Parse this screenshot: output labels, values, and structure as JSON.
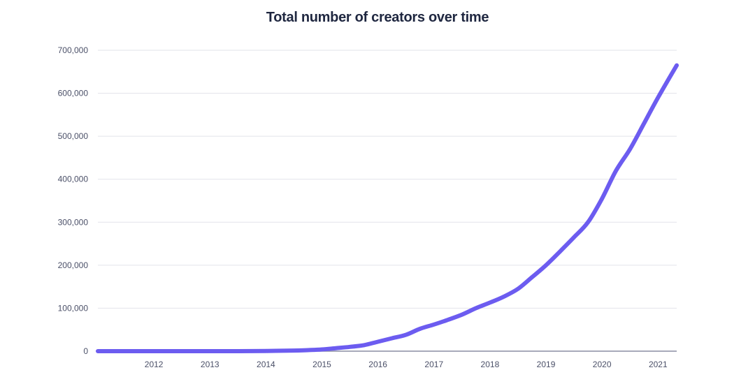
{
  "chart_data": {
    "type": "line",
    "title": "Total number of creators over time",
    "xlabel": "",
    "ylabel": "",
    "x_ticks": [
      "2012",
      "2013",
      "2014",
      "2015",
      "2016",
      "2017",
      "2018",
      "2019",
      "2020",
      "2021"
    ],
    "y_ticks": [
      "0",
      "100,000",
      "200,000",
      "300,000",
      "400,000",
      "500,000",
      "600,000",
      "700,000"
    ],
    "xlim": [
      "2011-07",
      "2021-11"
    ],
    "ylim": [
      0,
      700000
    ],
    "grid": true,
    "colors": {
      "line": "#6c5cf0",
      "grid": "#e2e3ea",
      "axis": "#8a8ea3"
    },
    "series": [
      {
        "x": [
          "2011-07",
          "2012-01",
          "2012-07",
          "2013-01",
          "2013-07",
          "2014-01",
          "2014-07",
          "2015-01",
          "2015-04",
          "2015-07",
          "2015-10",
          "2016-01",
          "2016-04",
          "2016-07",
          "2016-10",
          "2017-01",
          "2017-04",
          "2017-07",
          "2017-10",
          "2018-01",
          "2018-04",
          "2018-07",
          "2018-10",
          "2019-01",
          "2019-04",
          "2019-07",
          "2019-10",
          "2020-01",
          "2020-04",
          "2020-07",
          "2020-10",
          "2021-01",
          "2021-04",
          "2021-07",
          "2021-11"
        ],
        "y": [
          0,
          0,
          0,
          0,
          0,
          0,
          500,
          1500,
          2500,
          4000,
          7000,
          10000,
          14000,
          22000,
          30000,
          38000,
          52000,
          62000,
          73000,
          85000,
          100000,
          113000,
          127000,
          145000,
          172000,
          200000,
          232000,
          265000,
          300000,
          355000,
          420000,
          470000,
          530000,
          590000,
          665000
        ]
      }
    ]
  }
}
